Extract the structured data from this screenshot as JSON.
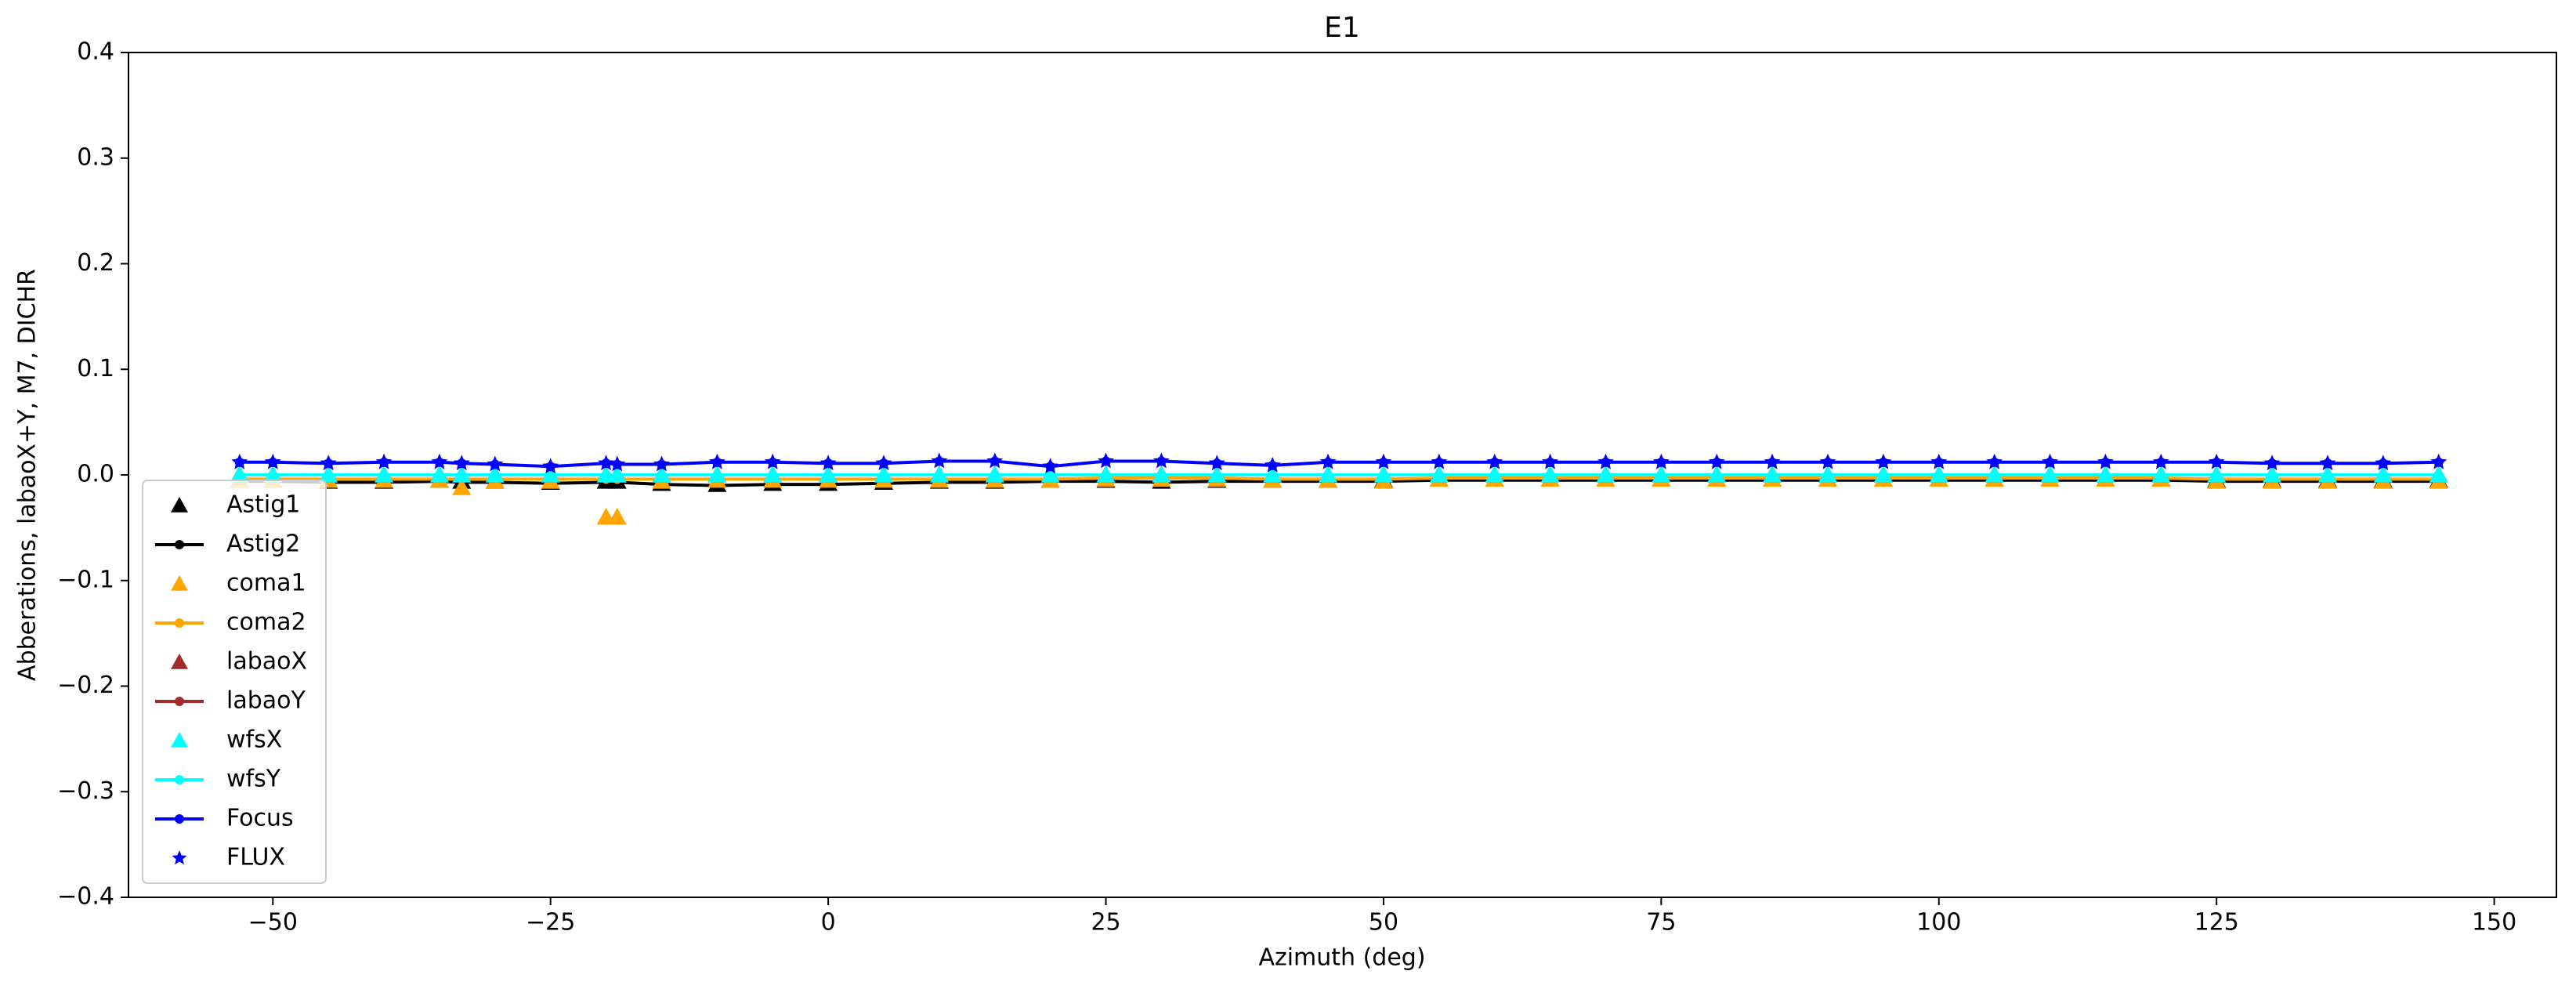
{
  "chart_data": {
    "type": "line",
    "title": "E1",
    "x_label": "Azimuth (deg)",
    "y_label": "Abberations, labaoX+Y, M7, DICHR",
    "xlim": [
      -63,
      155.6
    ],
    "ylim": [
      -0.4,
      0.4
    ],
    "xticks": [
      {
        "value": -50,
        "label": "−50"
      },
      {
        "value": -25,
        "label": "−25"
      },
      0,
      25,
      50,
      75,
      100,
      125,
      150
    ],
    "yticks": [
      {
        "value": -0.4,
        "label": "−0.4"
      },
      {
        "value": -0.3,
        "label": "−0.3"
      },
      {
        "value": -0.2,
        "label": "−0.2"
      },
      {
        "value": -0.1,
        "label": "−0.1"
      },
      {
        "value": 0,
        "label": "0.0"
      },
      0.1,
      0.2,
      0.3,
      0.4
    ],
    "legend": "lower left",
    "x": [
      -53,
      -50,
      -45,
      -40,
      -35,
      -33,
      -30,
      -25,
      -20,
      -19,
      -15,
      -10,
      -5,
      0,
      5,
      10,
      15,
      20,
      25,
      30,
      35,
      40,
      45,
      50,
      55,
      60,
      65,
      70,
      75,
      80,
      85,
      90,
      95,
      100,
      105,
      110,
      115,
      120,
      125,
      130,
      135,
      140,
      145
    ],
    "series": [
      {
        "name": "Astig1",
        "color": "#000000",
        "marker": "triangle",
        "values": [
          -0.005,
          -0.005,
          -0.006,
          -0.006,
          -0.005,
          -0.006,
          -0.006,
          -0.007,
          -0.006,
          -0.006,
          -0.008,
          -0.009,
          -0.008,
          -0.008,
          -0.007,
          -0.006,
          -0.006,
          -0.005,
          -0.005,
          -0.006,
          -0.005,
          -0.005,
          -0.005,
          -0.005,
          -0.004,
          -0.004,
          -0.004,
          -0.004,
          -0.004,
          -0.004,
          -0.004,
          -0.004,
          -0.004,
          -0.004,
          -0.004,
          -0.004,
          -0.004,
          -0.004,
          -0.005,
          -0.005,
          -0.005,
          -0.005,
          -0.005
        ]
      },
      {
        "name": "Astig2",
        "color": "#000000",
        "marker": "line",
        "values": [
          -0.006,
          -0.006,
          -0.007,
          -0.007,
          -0.006,
          -0.007,
          -0.007,
          -0.008,
          -0.007,
          -0.007,
          -0.009,
          -0.01,
          -0.009,
          -0.009,
          -0.008,
          -0.007,
          -0.007,
          -0.006,
          -0.006,
          -0.007,
          -0.006,
          -0.006,
          -0.006,
          -0.006,
          -0.005,
          -0.005,
          -0.005,
          -0.005,
          -0.005,
          -0.005,
          -0.005,
          -0.005,
          -0.005,
          -0.005,
          -0.005,
          -0.005,
          -0.005,
          -0.005,
          -0.006,
          -0.006,
          -0.006,
          -0.006,
          -0.006
        ]
      },
      {
        "name": "coma1",
        "color": "#ffa500",
        "marker": "triangle",
        "values": [
          -0.005,
          -0.005,
          -0.005,
          -0.005,
          -0.005,
          -0.012,
          -0.006,
          -0.006,
          -0.04,
          -0.04,
          -0.006,
          -0.005,
          -0.005,
          -0.005,
          -0.005,
          -0.005,
          -0.005,
          -0.005,
          -0.004,
          -0.004,
          -0.004,
          -0.005,
          -0.005,
          -0.006,
          -0.004,
          -0.004,
          -0.004,
          -0.004,
          -0.004,
          -0.004,
          -0.004,
          -0.004,
          -0.004,
          -0.004,
          -0.004,
          -0.004,
          -0.004,
          -0.004,
          -0.006,
          -0.006,
          -0.006,
          -0.006,
          -0.006
        ]
      },
      {
        "name": "coma2",
        "color": "#ffa500",
        "marker": "line",
        "values": [
          -0.004,
          -0.004,
          -0.004,
          -0.004,
          -0.004,
          -0.004,
          -0.004,
          -0.004,
          -0.004,
          -0.004,
          -0.004,
          -0.004,
          -0.004,
          -0.004,
          -0.004,
          -0.004,
          -0.004,
          -0.004,
          -0.003,
          -0.003,
          -0.003,
          -0.004,
          -0.004,
          -0.004,
          -0.003,
          -0.003,
          -0.003,
          -0.003,
          -0.003,
          -0.003,
          -0.003,
          -0.003,
          -0.003,
          -0.003,
          -0.003,
          -0.003,
          -0.003,
          -0.003,
          -0.004,
          -0.004,
          -0.004,
          -0.004,
          -0.004
        ]
      },
      {
        "name": "labaoX",
        "color": "#a52a2a",
        "marker": "triangle",
        "values": [
          0,
          0,
          0,
          0,
          0,
          0,
          0,
          0,
          0,
          0,
          0,
          0,
          0,
          0,
          0,
          0,
          0,
          0,
          0,
          0,
          0,
          0,
          0,
          0,
          0,
          0,
          0,
          0,
          0,
          0,
          0,
          0,
          0,
          0,
          0,
          0,
          0,
          0,
          0,
          0,
          0,
          0,
          0
        ]
      },
      {
        "name": "labaoY",
        "color": "#a52a2a",
        "marker": "line",
        "values": [
          0,
          0,
          0,
          0,
          0,
          0,
          0,
          0,
          0,
          0,
          0,
          0,
          0,
          0,
          0,
          0,
          0,
          0,
          0,
          0,
          0,
          0,
          0,
          0,
          0,
          0,
          0,
          0,
          0,
          0,
          0,
          0,
          0,
          0,
          0,
          0,
          0,
          0,
          0,
          0,
          0,
          0,
          0
        ]
      },
      {
        "name": "wfsX",
        "color": "#00ffff",
        "marker": "triangle",
        "values": [
          0,
          0,
          0,
          0,
          0,
          0,
          0,
          0,
          0,
          0,
          0,
          0,
          0,
          0,
          0,
          0,
          0,
          0,
          0,
          0,
          0,
          0,
          0,
          0,
          0,
          0,
          0,
          0,
          0,
          0,
          0,
          0,
          0,
          0,
          0,
          0,
          0,
          0,
          0,
          0,
          0,
          0,
          0
        ]
      },
      {
        "name": "wfsY",
        "color": "#00ffff",
        "marker": "line",
        "values": [
          0,
          0,
          0,
          0,
          0,
          0,
          0,
          0,
          0,
          0,
          0,
          0,
          0,
          0,
          0,
          0,
          0,
          0,
          0,
          0,
          0,
          0,
          0,
          0,
          0,
          0,
          0,
          0,
          0,
          0,
          0,
          0,
          0,
          0,
          0,
          0,
          0,
          0,
          0,
          0,
          0,
          0,
          0
        ]
      },
      {
        "name": "Focus",
        "color": "#0000ff",
        "marker": "line",
        "values": [
          0.012,
          0.012,
          0.011,
          0.012,
          0.012,
          0.011,
          0.01,
          0.008,
          0.011,
          0.01,
          0.01,
          0.012,
          0.012,
          0.011,
          0.011,
          0.013,
          0.013,
          0.008,
          0.013,
          0.013,
          0.011,
          0.009,
          0.012,
          0.012,
          0.012,
          0.012,
          0.012,
          0.012,
          0.012,
          0.012,
          0.012,
          0.012,
          0.012,
          0.012,
          0.012,
          0.012,
          0.012,
          0.012,
          0.012,
          0.011,
          0.011,
          0.011,
          0.012
        ]
      },
      {
        "name": "FLUX",
        "color": "#0000ff",
        "marker": "star",
        "values": [
          0.012,
          0.012,
          0.011,
          0.012,
          0.012,
          0.011,
          0.01,
          0.008,
          0.011,
          0.01,
          0.01,
          0.012,
          0.012,
          0.011,
          0.011,
          0.013,
          0.013,
          0.008,
          0.013,
          0.013,
          0.011,
          0.009,
          0.012,
          0.012,
          0.012,
          0.012,
          0.012,
          0.012,
          0.012,
          0.012,
          0.012,
          0.012,
          0.012,
          0.012,
          0.012,
          0.012,
          0.012,
          0.012,
          0.012,
          0.011,
          0.011,
          0.011,
          0.012
        ]
      }
    ]
  }
}
